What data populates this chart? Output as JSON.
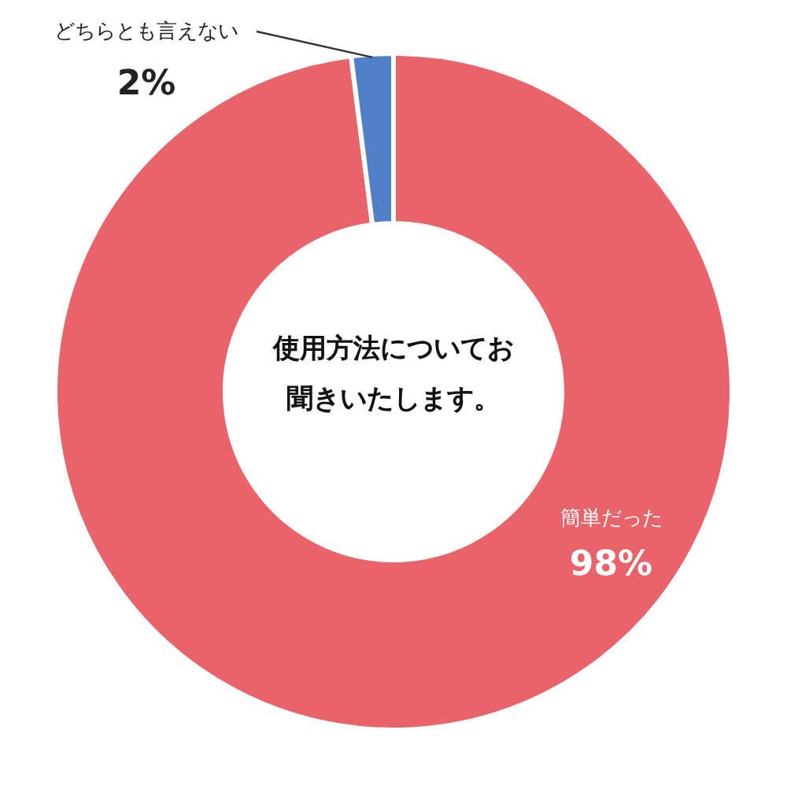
{
  "chart_data": {
    "type": "donut",
    "title": "使用方法についてお聞きいたします。",
    "categories": [
      "簡単だった",
      "どちらとも言えない"
    ],
    "values": [
      98,
      2
    ],
    "colors": [
      "#e8636a",
      "#4f80c8"
    ],
    "value_labels": [
      "98%",
      "2%"
    ]
  }
}
